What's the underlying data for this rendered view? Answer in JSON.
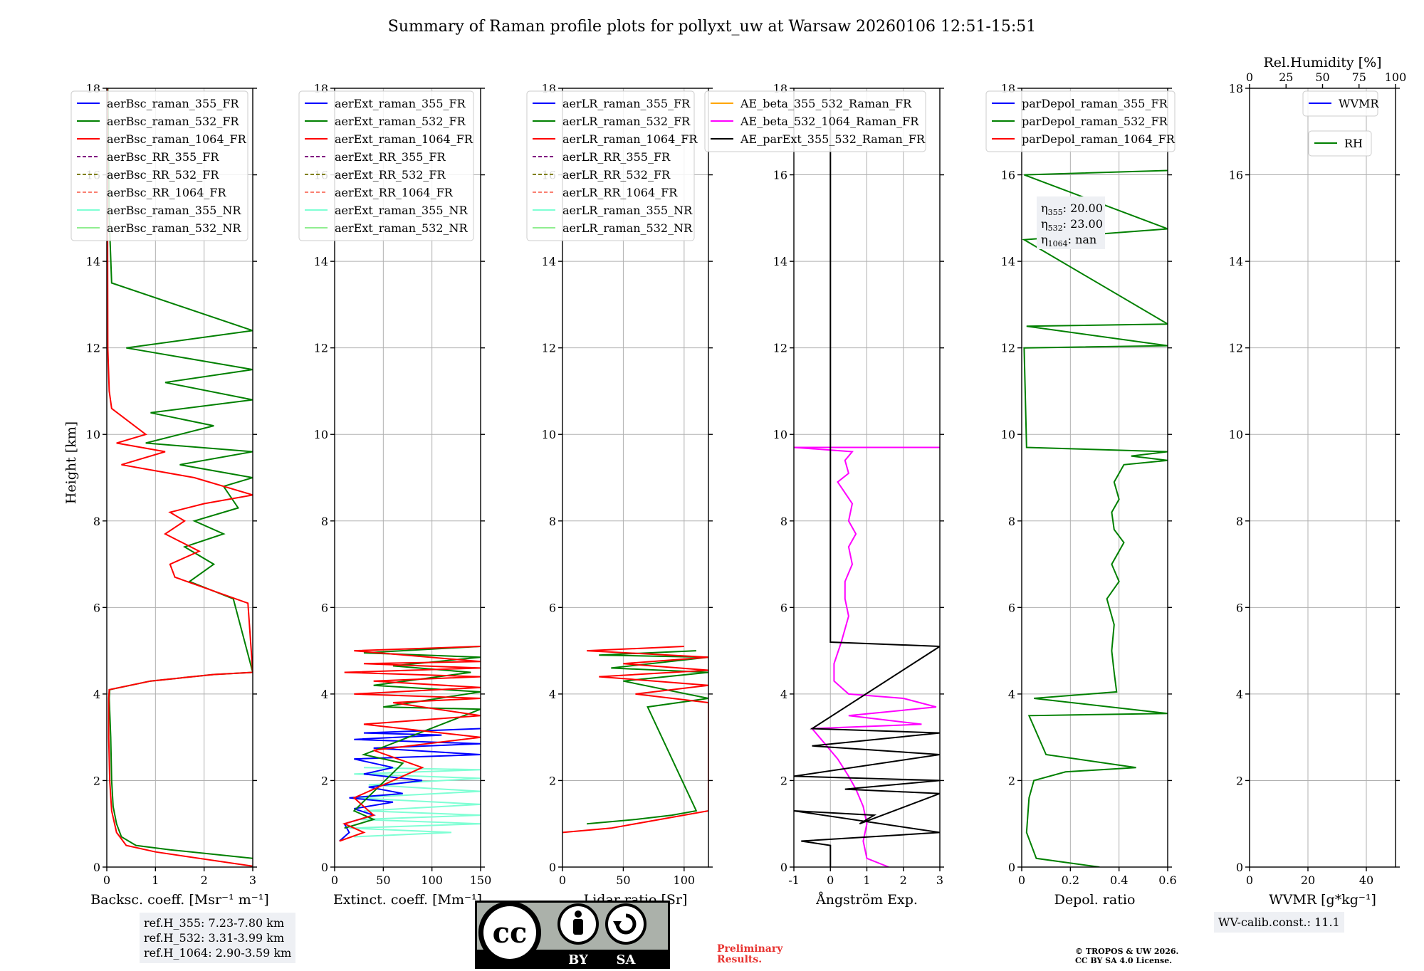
{
  "title": "Summary of Raman profile plots for pollyxt_uw at Warsaw 20260106 12:51-15:51",
  "ylabel": "Height [km]",
  "colors": {
    "blue": "#0000ff",
    "green": "#008000",
    "red": "#ff0000",
    "purple": "#800080",
    "olive": "#808000",
    "salmon": "#fa8072",
    "cyan": "#7fffd4",
    "lightgreen": "#90ee90",
    "orange": "#ffa500",
    "magenta": "#ff00ff",
    "black": "#000000",
    "grid": "#b0b0b0"
  },
  "chart_data": [
    {
      "type": "line",
      "id": "bsc",
      "xlabel": "Backsc. coeff. [Msr⁻¹ m⁻¹]",
      "xlim": [
        0,
        3
      ],
      "ylim": [
        0,
        18
      ],
      "xticks": [
        0,
        1,
        2,
        3
      ],
      "yticks": [
        0,
        2,
        4,
        6,
        8,
        10,
        12,
        14,
        16,
        18
      ],
      "grid": true,
      "legend_position": "upper-left",
      "legend": [
        {
          "label": "aerBsc_raman_355_FR",
          "color": "blue",
          "style": "solid"
        },
        {
          "label": "aerBsc_raman_532_FR",
          "color": "green",
          "style": "solid"
        },
        {
          "label": "aerBsc_raman_1064_FR",
          "color": "red",
          "style": "solid"
        },
        {
          "label": "aerBsc_RR_355_FR",
          "color": "purple",
          "style": "dashed"
        },
        {
          "label": "aerBsc_RR_532_FR",
          "color": "olive",
          "style": "dashed"
        },
        {
          "label": "aerBsc_RR_1064_FR",
          "color": "salmon",
          "style": "dashed"
        },
        {
          "label": "aerBsc_raman_355_NR",
          "color": "cyan",
          "style": "solid"
        },
        {
          "label": "aerBsc_raman_532_NR",
          "color": "lightgreen",
          "style": "solid"
        }
      ],
      "series": [
        {
          "name": "aerBsc_raman_532_FR",
          "color": "green",
          "x": [
            3.0,
            1.3,
            0.6,
            0.3,
            0.2,
            0.13,
            0.1,
            0.08,
            0.05,
            0.06,
            0.9,
            2.2,
            3.0,
            2.6,
            1.7,
            2.2,
            1.6,
            2.4,
            1.8,
            2.7,
            2.4,
            3.0,
            1.5,
            3.0,
            0.8,
            2.2,
            0.9,
            3.0,
            1.2,
            3.0,
            0.4,
            3.0,
            0.1,
            0.05,
            0.02
          ],
          "y": [
            0.2,
            0.4,
            0.5,
            0.7,
            1.0,
            1.4,
            2.0,
            3.0,
            3.9,
            4.1,
            4.3,
            4.45,
            4.5,
            6.2,
            6.6,
            7.0,
            7.4,
            7.7,
            8.0,
            8.3,
            8.8,
            9.0,
            9.3,
            9.6,
            9.8,
            10.2,
            10.5,
            10.8,
            11.2,
            11.5,
            12.0,
            12.4,
            13.5,
            15.0,
            18.0
          ]
        },
        {
          "name": "aerBsc_raman_1064_FR",
          "color": "red",
          "x": [
            3.0,
            1.0,
            0.4,
            0.2,
            0.1,
            0.06,
            0.04,
            0.04,
            0.05,
            0.9,
            2.2,
            3.0,
            2.9,
            1.4,
            1.3,
            1.9,
            1.2,
            1.6,
            1.3,
            2.0,
            3.0,
            1.8,
            0.3,
            1.2,
            0.2,
            0.8,
            0.1,
            0.05,
            0.02,
            0.01
          ],
          "y": [
            0.02,
            0.35,
            0.5,
            0.8,
            1.3,
            2.0,
            3.0,
            3.9,
            4.1,
            4.3,
            4.45,
            4.5,
            6.1,
            6.7,
            7.0,
            7.3,
            7.7,
            8.0,
            8.2,
            8.4,
            8.6,
            9.0,
            9.3,
            9.6,
            9.8,
            10.0,
            10.6,
            11.0,
            12.0,
            18.0
          ]
        }
      ]
    },
    {
      "type": "line",
      "id": "ext",
      "xlabel": "Extinct. coeff. [Mm⁻¹]",
      "xlim": [
        0,
        150
      ],
      "ylim": [
        0,
        18
      ],
      "xticks": [
        0,
        50,
        100,
        150
      ],
      "yticks": [
        0,
        2,
        4,
        6,
        8,
        10,
        12,
        14,
        16,
        18
      ],
      "grid": true,
      "legend_position": "upper-left",
      "legend": [
        {
          "label": "aerExt_raman_355_FR",
          "color": "blue",
          "style": "solid"
        },
        {
          "label": "aerExt_raman_532_FR",
          "color": "green",
          "style": "solid"
        },
        {
          "label": "aerExt_raman_1064_FR",
          "color": "red",
          "style": "solid"
        },
        {
          "label": "aerExt_RR_355_FR",
          "color": "purple",
          "style": "dashed"
        },
        {
          "label": "aerExt_RR_532_FR",
          "color": "olive",
          "style": "dashed"
        },
        {
          "label": "aerExt_RR_1064_FR",
          "color": "salmon",
          "style": "dashed"
        },
        {
          "label": "aerExt_raman_355_NR",
          "color": "cyan",
          "style": "solid"
        },
        {
          "label": "aerExt_raman_532_NR",
          "color": "lightgreen",
          "style": "solid"
        }
      ],
      "series": [
        {
          "name": "aerExt_raman_355_NR",
          "color": "cyan",
          "x": [
            20,
            120,
            15,
            150,
            25,
            150,
            30,
            150,
            20,
            150,
            35,
            150,
            20,
            150,
            30
          ],
          "y": [
            0.7,
            0.8,
            0.9,
            1.0,
            1.1,
            1.2,
            1.3,
            1.45,
            1.6,
            1.75,
            1.9,
            2.05,
            2.15,
            2.25,
            2.3
          ]
        },
        {
          "name": "aerExt_raman_355_FR",
          "color": "blue",
          "x": [
            5,
            15,
            10,
            40,
            20,
            60,
            15,
            70,
            35,
            90,
            30,
            60,
            20,
            150,
            40,
            150,
            20,
            110,
            30,
            150
          ],
          "y": [
            0.6,
            0.8,
            1.0,
            1.2,
            1.35,
            1.5,
            1.6,
            1.7,
            1.85,
            2.0,
            2.15,
            2.3,
            2.5,
            2.6,
            2.75,
            2.85,
            2.95,
            3.05,
            3.1,
            3.2
          ]
        },
        {
          "name": "aerExt_raman_532_FR",
          "color": "green",
          "x": [
            10,
            40,
            20,
            70,
            30,
            150,
            50,
            150,
            40,
            140,
            60,
            150,
            30,
            150
          ],
          "y": [
            0.9,
            1.1,
            1.3,
            2.4,
            2.6,
            3.65,
            3.7,
            4.05,
            4.2,
            4.5,
            4.65,
            4.85,
            4.95,
            5.1
          ]
        },
        {
          "name": "aerExt_raman_1064_FR",
          "color": "red",
          "x": [
            5,
            30,
            10,
            40,
            20,
            90,
            40,
            150,
            30,
            150,
            60,
            150,
            20,
            150,
            40,
            150,
            10,
            150,
            30,
            150,
            20,
            150
          ],
          "y": [
            0.6,
            0.8,
            1.0,
            1.2,
            1.6,
            2.3,
            2.7,
            3.0,
            3.3,
            3.5,
            3.8,
            3.9,
            4.0,
            4.15,
            4.3,
            4.4,
            4.5,
            4.6,
            4.7,
            4.75,
            5.0,
            5.1
          ]
        }
      ]
    },
    {
      "type": "line",
      "id": "lr",
      "xlabel": "Lidar ratio [Sr]",
      "xlim": [
        0,
        120
      ],
      "ylim": [
        0,
        18
      ],
      "xticks": [
        0,
        50,
        100
      ],
      "yticks": [
        0,
        2,
        4,
        6,
        8,
        10,
        12,
        14,
        16,
        18
      ],
      "grid": true,
      "legend_position": "upper-left",
      "legend": [
        {
          "label": "aerLR_raman_355_FR",
          "color": "blue",
          "style": "solid"
        },
        {
          "label": "aerLR_raman_532_FR",
          "color": "green",
          "style": "solid"
        },
        {
          "label": "aerLR_raman_1064_FR",
          "color": "red",
          "style": "solid"
        },
        {
          "label": "aerLR_RR_355_FR",
          "color": "purple",
          "style": "dashed"
        },
        {
          "label": "aerLR_RR_532_FR",
          "color": "olive",
          "style": "dashed"
        },
        {
          "label": "aerLR_RR_1064_FR",
          "color": "salmon",
          "style": "dashed"
        },
        {
          "label": "aerLR_raman_355_NR",
          "color": "cyan",
          "style": "solid"
        },
        {
          "label": "aerLR_raman_532_NR",
          "color": "lightgreen",
          "style": "solid"
        }
      ],
      "series": [
        {
          "name": "aerLR_raman_532_FR",
          "color": "green",
          "x": [
            20,
            60,
            90,
            110,
            70,
            120,
            50,
            120,
            40,
            120,
            30,
            110
          ],
          "y": [
            1.0,
            1.1,
            1.2,
            1.3,
            3.7,
            3.9,
            4.3,
            4.5,
            4.6,
            4.85,
            4.9,
            5.0
          ]
        },
        {
          "name": "aerLR_raman_1064_FR",
          "color": "red",
          "x": [
            0,
            40,
            80,
            120,
            120,
            120,
            120,
            120,
            120,
            120,
            120,
            120,
            60,
            120,
            30,
            120,
            50,
            120,
            20,
            100
          ],
          "y": [
            0.8,
            0.9,
            1.1,
            1.3,
            1.5,
            1.7,
            2.1,
            2.4,
            2.9,
            3.3,
            3.5,
            3.8,
            4.0,
            4.2,
            4.4,
            4.55,
            4.7,
            4.85,
            5.0,
            5.1
          ]
        }
      ]
    },
    {
      "type": "line",
      "id": "ae",
      "xlabel": "Ångström Exp.",
      "xlim": [
        -1,
        3
      ],
      "ylim": [
        0,
        18
      ],
      "xticks": [
        -1,
        0,
        1,
        2,
        3
      ],
      "yticks": [
        0,
        2,
        4,
        6,
        8,
        10,
        12,
        14,
        16,
        18
      ],
      "grid": true,
      "legend_position": "upper-left",
      "legend": [
        {
          "label": "AE_beta_355_532_Raman_FR",
          "color": "orange",
          "style": "solid"
        },
        {
          "label": "AE_beta_532_1064_Raman_FR",
          "color": "magenta",
          "style": "solid"
        },
        {
          "label": "AE_parExt_355_532_Raman_FR",
          "color": "black",
          "style": "solid"
        }
      ],
      "series": [
        {
          "name": "AE_beta_532_1064_Raman_FR",
          "color": "magenta",
          "x": [
            1.6,
            1.0,
            0.9,
            1.0,
            0.9,
            0.7,
            0.5,
            0.2,
            -0.5,
            2.5,
            0.5,
            2.9,
            2.0,
            0.5,
            0.1,
            0.1,
            0.3,
            0.5,
            0.4,
            0.4,
            0.6,
            0.5,
            0.7,
            0.5,
            0.6,
            0.2,
            0.5,
            0.4,
            0.6,
            -1.0,
            3.0
          ],
          "y": [
            0.0,
            0.2,
            0.6,
            1.0,
            1.4,
            1.8,
            2.1,
            2.5,
            3.2,
            3.3,
            3.5,
            3.7,
            3.9,
            4.0,
            4.3,
            4.7,
            5.2,
            5.8,
            6.2,
            6.6,
            7.0,
            7.4,
            7.7,
            8.0,
            8.4,
            8.9,
            9.1,
            9.4,
            9.6,
            9.7,
            9.7
          ]
        },
        {
          "name": "AE_parExt_355_532_Raman_FR",
          "color": "black",
          "x": [
            0.0,
            0.0,
            -0.8,
            3.0,
            -1.0,
            1.2,
            0.8,
            3.0,
            0.4,
            3.0,
            -1.0,
            3.0,
            -0.5,
            3.0,
            -0.5,
            3.0,
            0.0,
            0.0,
            0.0,
            0.0
          ],
          "y": [
            0.0,
            0.5,
            0.6,
            0.8,
            1.3,
            1.2,
            1.0,
            1.7,
            1.8,
            2.0,
            2.1,
            2.6,
            2.8,
            3.1,
            3.2,
            5.1,
            5.2,
            9.0,
            14.0,
            17.5
          ]
        }
      ]
    },
    {
      "type": "line",
      "id": "depol",
      "xlabel": "Depol. ratio",
      "xlim": [
        0.0,
        0.6
      ],
      "ylim": [
        0,
        18
      ],
      "xticks": [
        0.0,
        0.2,
        0.4,
        0.6
      ],
      "yticks": [
        0,
        2,
        4,
        6,
        8,
        10,
        12,
        14,
        16,
        18
      ],
      "grid": true,
      "legend_position": "upper-left",
      "legend": [
        {
          "label": "parDepol_raman_355_FR",
          "color": "blue",
          "style": "solid"
        },
        {
          "label": "parDepol_raman_532_FR",
          "color": "green",
          "style": "solid"
        },
        {
          "label": "parDepol_raman_1064_FR",
          "color": "red",
          "style": "solid"
        }
      ],
      "series": [
        {
          "name": "parDepol_raman_532_FR",
          "color": "green",
          "x": [
            0.32,
            0.06,
            0.02,
            0.03,
            0.05,
            0.18,
            0.47,
            0.1,
            0.03,
            0.6,
            0.05,
            0.39,
            0.38,
            0.37,
            0.38,
            0.35,
            0.4,
            0.37,
            0.42,
            0.38,
            0.37,
            0.4,
            0.38,
            0.4,
            0.42,
            0.6,
            0.45,
            0.6,
            0.02,
            0.01,
            0.6,
            0.02,
            0.6,
            0.01,
            0.6,
            0.01,
            0.6
          ],
          "y": [
            0.0,
            0.2,
            0.8,
            1.6,
            2.0,
            2.2,
            2.3,
            2.6,
            3.5,
            3.55,
            3.9,
            4.05,
            4.5,
            5.0,
            5.6,
            6.2,
            6.6,
            7.0,
            7.5,
            7.8,
            8.2,
            8.5,
            8.9,
            9.1,
            9.3,
            9.4,
            9.5,
            9.6,
            9.7,
            12.0,
            12.05,
            12.5,
            12.55,
            14.5,
            14.75,
            16.0,
            16.1
          ]
        }
      ],
      "annotation": [
        {
          "label": "η",
          "sub": "355",
          "value": ": 20.00"
        },
        {
          "label": "η",
          "sub": "532",
          "value": ": 23.00"
        },
        {
          "label": "η",
          "sub": "1064",
          "value": ": nan"
        }
      ]
    },
    {
      "type": "line",
      "id": "wv",
      "xlabel": "WVMR [g*kg⁻¹]",
      "xlim": [
        0,
        50
      ],
      "ylim": [
        0,
        18
      ],
      "xticks": [
        0,
        20,
        40
      ],
      "yticks": [
        0,
        2,
        4,
        6,
        8,
        10,
        12,
        14,
        16,
        18
      ],
      "grid": true,
      "legend_position": "upper-right",
      "top_axis": {
        "label": "Rel.Humidity [%]",
        "lim": [
          0,
          100
        ],
        "ticks": [
          0,
          25,
          50,
          75,
          100
        ]
      },
      "legend": [
        {
          "label": "WVMR",
          "color": "blue",
          "style": "solid"
        }
      ],
      "legend2": [
        {
          "label": "RH",
          "color": "green",
          "style": "solid"
        }
      ],
      "series": []
    }
  ],
  "ref_heights": [
    "ref.H_355: 7.23-7.80 km",
    "ref.H_532: 3.31-3.99 km",
    "ref.H_1064: 2.90-3.59 km"
  ],
  "license_badge": {
    "left": "BY",
    "right": "SA",
    "logo": "cc-icon"
  },
  "preliminary": [
    "Preliminary",
    "Results."
  ],
  "copyright": [
    "© TROPOS & UW 2026.",
    "CC BY SA 4.0 License."
  ],
  "wv_calib": "WV-calib.const.: 11.1"
}
